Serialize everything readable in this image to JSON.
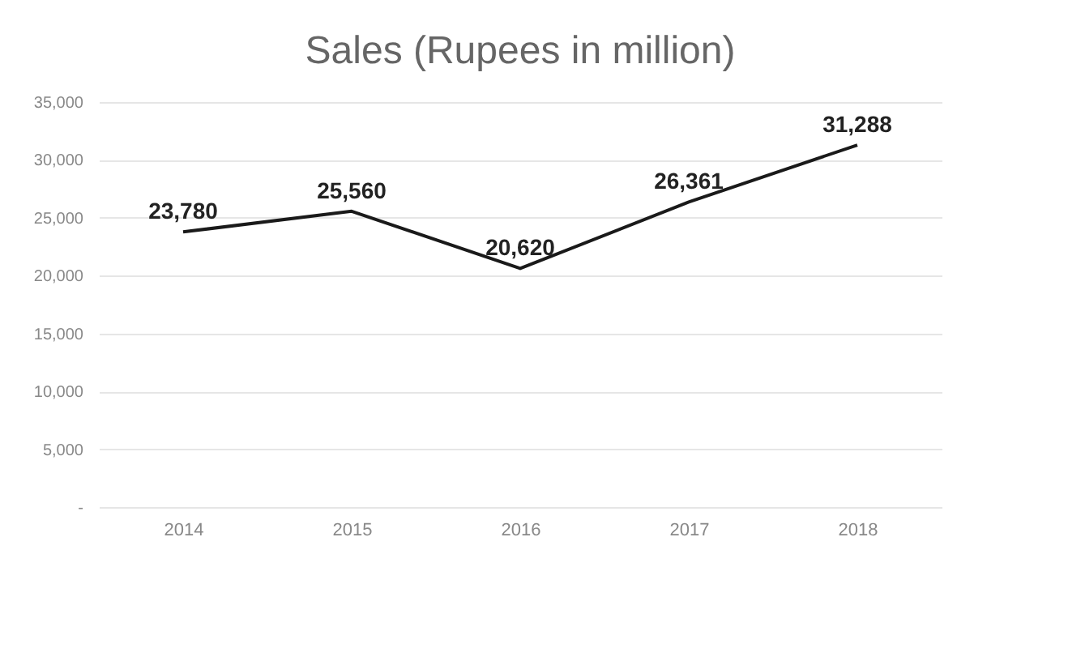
{
  "chart_data": {
    "type": "line",
    "title": "Sales (Rupees in million)",
    "categories": [
      "2014",
      "2015",
      "2016",
      "2017",
      "2018"
    ],
    "series": [
      {
        "color": "#1a1a1a",
        "values": [
          23780,
          25560,
          20620,
          26361,
          31288
        ],
        "value_labels": [
          "23,780",
          "25,560",
          "20,620",
          "26,361",
          "31,288"
        ]
      }
    ],
    "ylim": [
      0,
      35000
    ],
    "yticks": [
      {
        "value": 0,
        "label": "-"
      },
      {
        "value": 5000,
        "label": "5,000"
      },
      {
        "value": 10000,
        "label": "10,000"
      },
      {
        "value": 15000,
        "label": "15,000"
      },
      {
        "value": 20000,
        "label": "20,000"
      },
      {
        "value": 25000,
        "label": "25,000"
      },
      {
        "value": 30000,
        "label": "30,000"
      },
      {
        "value": 35000,
        "label": "35,000"
      }
    ],
    "grid": "y",
    "marker": "none",
    "line_style": "solid"
  }
}
